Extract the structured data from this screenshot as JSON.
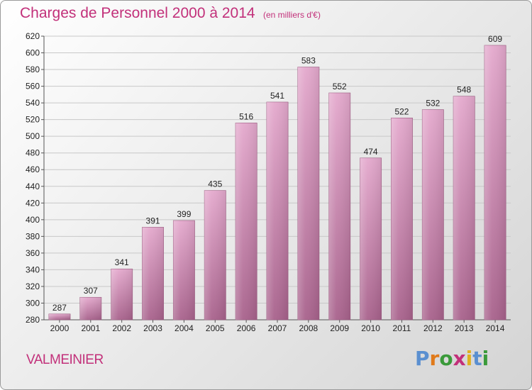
{
  "header": {
    "title": "Charges de Personnel 2000 à 2014",
    "unit": "(en milliers d'€)"
  },
  "footer": {
    "commune": "VALMEINIER",
    "logo_letters": [
      "P",
      "r",
      "o",
      "x",
      "i",
      "t",
      "i"
    ],
    "logo_colors": [
      "#5a8fd0",
      "#e07a1a",
      "#3a9a3a",
      "#c2307a",
      "#e0b020",
      "#5a8fd0",
      "#3a9a3a"
    ]
  },
  "colors": {
    "text_accent": "#c2307a",
    "bar_top": "#e4a9cd",
    "bar_bottom": "#a8628c"
  },
  "chart_data": {
    "type": "bar",
    "title": "Charges de Personnel 2000 à 2014",
    "subtitle": "(en milliers d'€)",
    "categories": [
      "2000",
      "2001",
      "2002",
      "2003",
      "2004",
      "2005",
      "2006",
      "2007",
      "2008",
      "2009",
      "2010",
      "2011",
      "2012",
      "2013",
      "2014"
    ],
    "values": [
      287,
      307,
      341,
      391,
      399,
      435,
      516,
      541,
      583,
      552,
      474,
      522,
      532,
      548,
      609
    ],
    "value_labels": [
      "287",
      "307",
      "341",
      "391",
      "399",
      "435",
      "516",
      "541",
      "583",
      "552",
      "474",
      "522",
      "532",
      "548",
      "609"
    ],
    "ylim": [
      280,
      620
    ],
    "yticks": [
      "280",
      "300",
      "320",
      "340",
      "360",
      "380",
      "400",
      "420",
      "440",
      "460",
      "480",
      "500",
      "520",
      "540",
      "560",
      "580",
      "600",
      "620"
    ],
    "grid": true
  }
}
